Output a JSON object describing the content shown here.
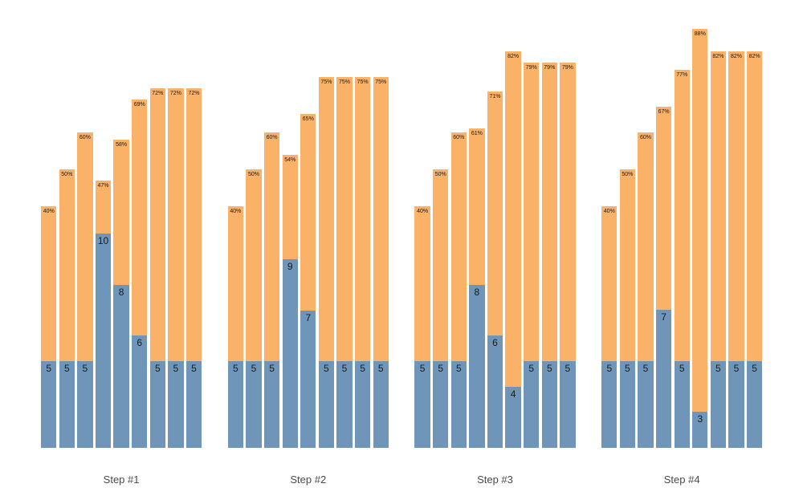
{
  "chart_data": {
    "type": "bar",
    "variant": "grouped-overlay-stacked",
    "title": "",
    "xlabel": "",
    "ylabel": "",
    "grid": false,
    "legend": null,
    "background_color": "#ffffff",
    "colors": {
      "count_bar": "#6F96B9",
      "percent_bar": "#FAB269",
      "bar_label_text": "#1a1a1a",
      "group_label_text": "#4a4a4a"
    },
    "groups": [
      {
        "label": "Step #1",
        "bars": [
          {
            "count": 5,
            "count_label": "5",
            "pct": 40,
            "pct_label": "40%"
          },
          {
            "count": 5,
            "count_label": "5",
            "pct": 50,
            "pct_label": "50%"
          },
          {
            "count": 5,
            "count_label": "5",
            "pct": 60,
            "pct_label": "60%"
          },
          {
            "count": 10,
            "count_label": "10",
            "pct": 47,
            "pct_label": "47%"
          },
          {
            "count": 8,
            "count_label": "8",
            "pct": 58,
            "pct_label": "58%"
          },
          {
            "count": 6,
            "count_label": "6",
            "pct": 69,
            "pct_label": "69%"
          },
          {
            "count": 5,
            "count_label": "5",
            "pct": 72,
            "pct_label": "72%"
          },
          {
            "count": 5,
            "count_label": "5",
            "pct": 72,
            "pct_label": "72%"
          },
          {
            "count": 5,
            "count_label": "5",
            "pct": 72,
            "pct_label": "72%"
          }
        ]
      },
      {
        "label": "Step #2",
        "bars": [
          {
            "count": 5,
            "count_label": "5",
            "pct": 40,
            "pct_label": "40%"
          },
          {
            "count": 5,
            "count_label": "5",
            "pct": 50,
            "pct_label": "50%"
          },
          {
            "count": 5,
            "count_label": "5",
            "pct": 60,
            "pct_label": "60%"
          },
          {
            "count": 9,
            "count_label": "9",
            "pct": 54,
            "pct_label": "54%"
          },
          {
            "count": 7,
            "count_label": "7",
            "pct": 65,
            "pct_label": "65%"
          },
          {
            "count": 5,
            "count_label": "5",
            "pct": 75,
            "pct_label": "75%"
          },
          {
            "count": 5,
            "count_label": "5",
            "pct": 75,
            "pct_label": "75%"
          },
          {
            "count": 5,
            "count_label": "5",
            "pct": 75,
            "pct_label": "75%"
          },
          {
            "count": 5,
            "count_label": "5",
            "pct": 75,
            "pct_label": "75%"
          }
        ]
      },
      {
        "label": "Step #3",
        "bars": [
          {
            "count": 5,
            "count_label": "5",
            "pct": 40,
            "pct_label": "40%"
          },
          {
            "count": 5,
            "count_label": "5",
            "pct": 50,
            "pct_label": "50%"
          },
          {
            "count": 5,
            "count_label": "5",
            "pct": 60,
            "pct_label": "60%"
          },
          {
            "count": 8,
            "count_label": "8",
            "pct": 61,
            "pct_label": "61%"
          },
          {
            "count": 6,
            "count_label": "6",
            "pct": 71,
            "pct_label": "71%"
          },
          {
            "count": 4,
            "count_label": "4",
            "pct": 82,
            "pct_label": "82%"
          },
          {
            "count": 5,
            "count_label": "5",
            "pct": 79,
            "pct_label": "79%"
          },
          {
            "count": 5,
            "count_label": "5",
            "pct": 79,
            "pct_label": "79%"
          },
          {
            "count": 5,
            "count_label": "5",
            "pct": 79,
            "pct_label": "79%"
          }
        ]
      },
      {
        "label": "Step #4",
        "bars": [
          {
            "count": 5,
            "count_label": "5",
            "pct": 40,
            "pct_label": "40%"
          },
          {
            "count": 5,
            "count_label": "5",
            "pct": 50,
            "pct_label": "50%"
          },
          {
            "count": 5,
            "count_label": "5",
            "pct": 60,
            "pct_label": "60%"
          },
          {
            "count": 7,
            "count_label": "7",
            "pct": 67,
            "pct_label": "67%"
          },
          {
            "count": 5,
            "count_label": "5",
            "pct": 77,
            "pct_label": "77%"
          },
          {
            "count": 3,
            "count_label": "3",
            "pct": 88,
            "pct_label": "88%"
          },
          {
            "count": 5,
            "count_label": "5",
            "pct": 82,
            "pct_label": "82%"
          },
          {
            "count": 5,
            "count_label": "5",
            "pct": 82,
            "pct_label": "82%"
          },
          {
            "count": 5,
            "count_label": "5",
            "pct": 82,
            "pct_label": "82%"
          }
        ]
      }
    ]
  }
}
